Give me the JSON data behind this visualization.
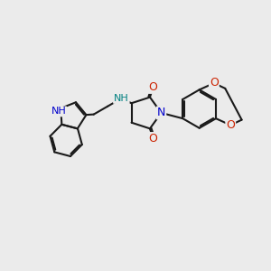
{
  "bg_color": "#ebebeb",
  "bond_color": "#1a1a1a",
  "bond_width": 1.5,
  "dbo": 0.055,
  "atom_colors": {
    "N_blue": "#0000cc",
    "N_teal": "#008080",
    "O": "#cc2200"
  },
  "xlim": [
    0,
    10
  ],
  "ylim": [
    0,
    10
  ]
}
